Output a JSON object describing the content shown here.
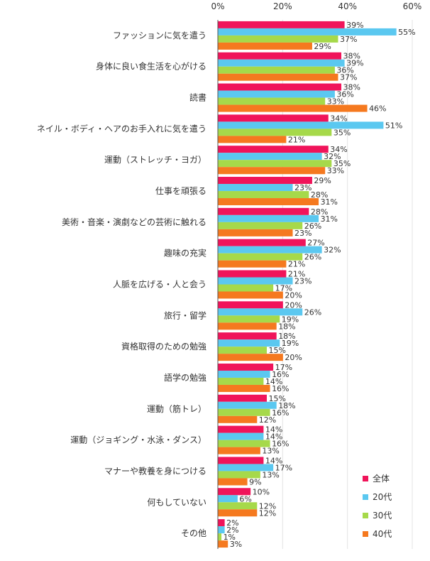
{
  "chart_data": {
    "type": "bar",
    "orientation": "horizontal",
    "value_suffix": "%",
    "xlim": [
      0,
      60
    ],
    "x_ticks": [
      "0%",
      "20%",
      "40%",
      "60%"
    ],
    "grid": true,
    "legend_position": "bottom-right",
    "categories": [
      "ファッションに気を遣う",
      "身体に良い食生活を心がける",
      "読書",
      "ネイル・ボディ・ヘアのお手入れに気を遣う",
      "運動（ストレッチ・ヨガ）",
      "仕事を頑張る",
      "美術・音楽・演劇などの芸術に触れる",
      "趣味の充実",
      "人脈を広げる・人と会う",
      "旅行・留学",
      "資格取得のための勉強",
      "語学の勉強",
      "運動（筋トレ）",
      "運動（ジョギング・水泳・ダンス）",
      "マナーや教養を身につける",
      "何もしていない",
      "その他"
    ],
    "series": [
      {
        "name": "全体",
        "color": "#f0145a",
        "values": [
          39,
          38,
          38,
          34,
          34,
          29,
          28,
          27,
          21,
          20,
          18,
          17,
          15,
          14,
          14,
          10,
          2
        ]
      },
      {
        "name": "20代",
        "color": "#5bc8f0",
        "values": [
          55,
          39,
          36,
          51,
          32,
          23,
          31,
          32,
          23,
          26,
          19,
          16,
          18,
          14,
          17,
          6,
          2
        ]
      },
      {
        "name": "30代",
        "color": "#a6d94a",
        "values": [
          37,
          36,
          33,
          35,
          35,
          28,
          26,
          26,
          17,
          19,
          15,
          14,
          16,
          16,
          13,
          12,
          1
        ]
      },
      {
        "name": "40代",
        "color": "#f5791f",
        "values": [
          29,
          37,
          46,
          21,
          33,
          31,
          23,
          21,
          20,
          18,
          20,
          16,
          12,
          13,
          9,
          12,
          3
        ]
      }
    ]
  }
}
